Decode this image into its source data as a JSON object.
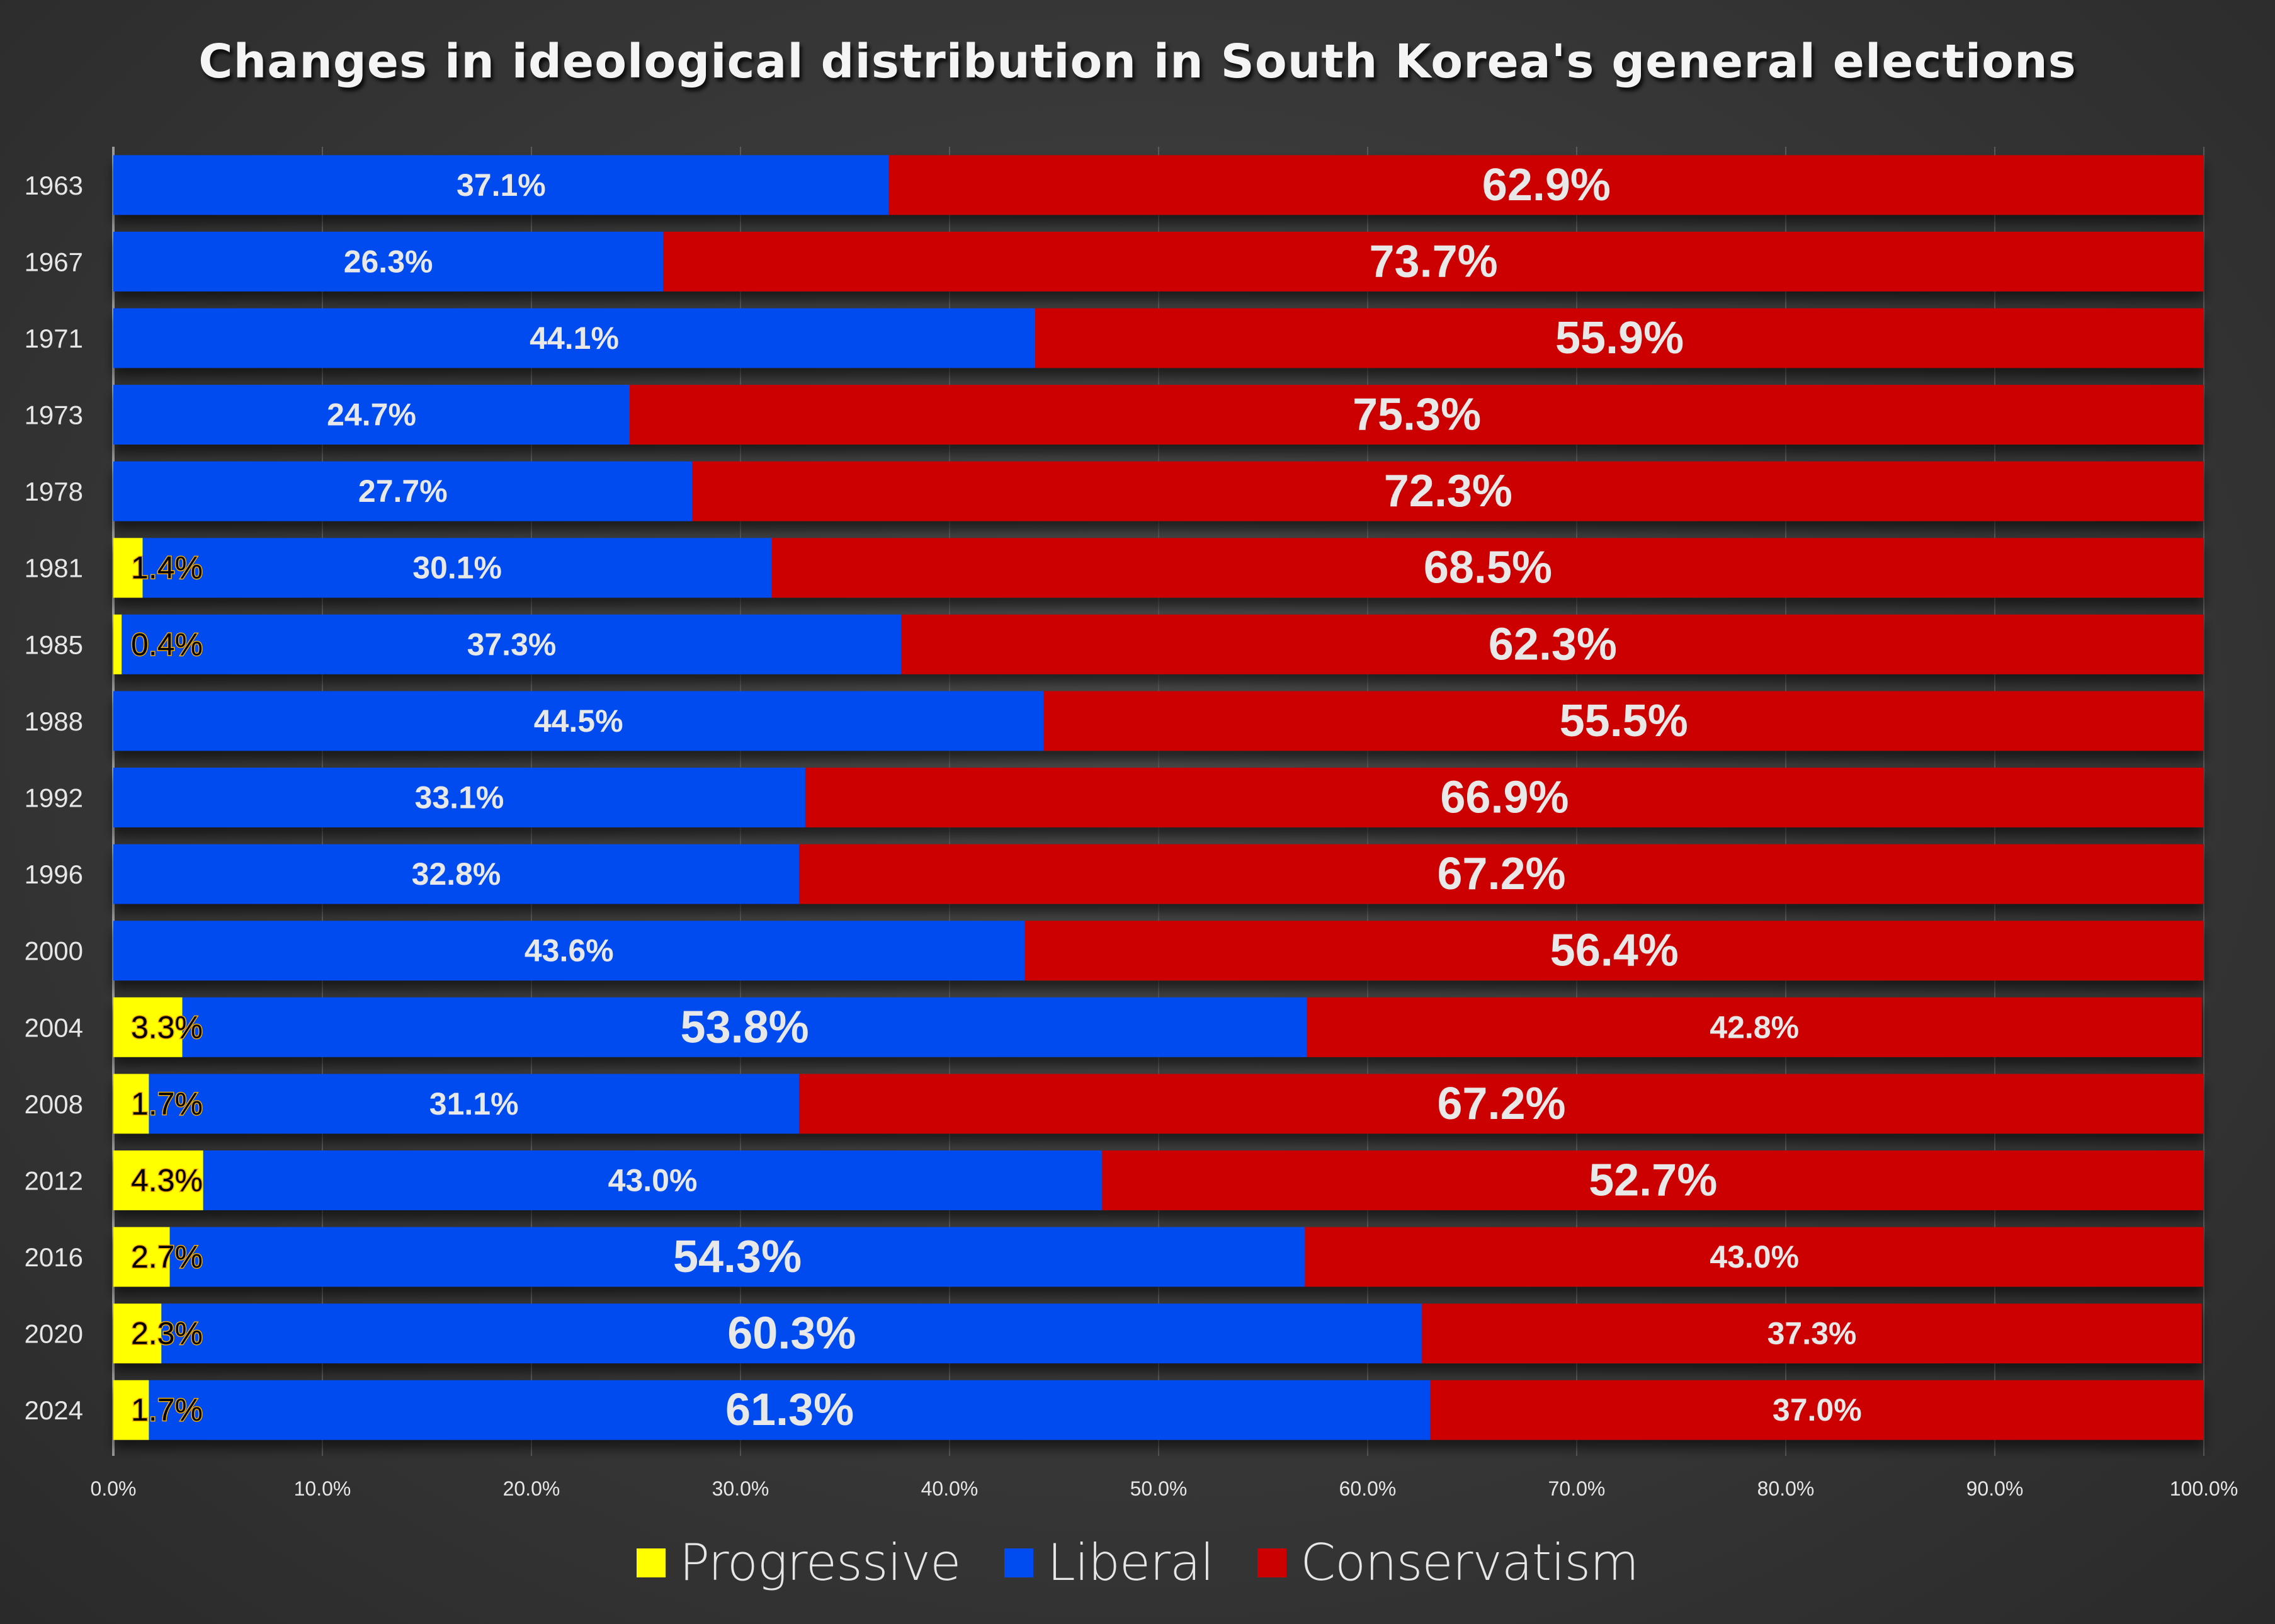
{
  "chart_data": {
    "type": "bar",
    "orientation": "horizontal",
    "stacked": true,
    "title": "Changes in ideological distribution in South Korea's general elections",
    "xlabel": "",
    "ylabel": "",
    "xlim": [
      0,
      100
    ],
    "x_ticks": [
      "0.0%",
      "10.0%",
      "20.0%",
      "30.0%",
      "40.0%",
      "50.0%",
      "60.0%",
      "70.0%",
      "80.0%",
      "90.0%",
      "100.0%"
    ],
    "grid": "vertical",
    "legend_position": "bottom-center",
    "categories": [
      "1963",
      "1967",
      "1971",
      "1973",
      "1978",
      "1981",
      "1985",
      "1988",
      "1992",
      "1996",
      "2000",
      "2004",
      "2008",
      "2012",
      "2016",
      "2020",
      "2024"
    ],
    "series": [
      {
        "name": "Progressive",
        "color": "#ffff00",
        "values": [
          0,
          0,
          0,
          0,
          0,
          1.4,
          0.4,
          0,
          0,
          0,
          0,
          3.3,
          1.7,
          4.3,
          2.7,
          2.3,
          1.7
        ]
      },
      {
        "name": "Liberal",
        "color": "#004cf0",
        "values": [
          37.1,
          26.3,
          44.1,
          24.7,
          27.7,
          30.1,
          37.3,
          44.5,
          33.1,
          32.8,
          43.6,
          53.8,
          31.1,
          43.0,
          54.3,
          60.3,
          61.3
        ]
      },
      {
        "name": "Conservatism",
        "color": "#cc0000",
        "values": [
          62.9,
          73.7,
          55.9,
          75.3,
          72.3,
          68.5,
          62.3,
          55.5,
          66.9,
          67.2,
          56.4,
          42.8,
          67.2,
          52.7,
          43.0,
          37.3,
          37.0
        ]
      }
    ],
    "data_labels": {
      "Progressive": [
        "",
        "",
        "",
        "",
        "",
        "1.4%",
        "0.4%",
        "",
        "",
        "",
        "",
        "3.3%",
        "1.7%",
        "4.3%",
        "2.7%",
        "2.3%",
        "1.7%"
      ],
      "Liberal": [
        "37.1%",
        "26.3%",
        "44.1%",
        "24.7%",
        "27.7%",
        "30.1%",
        "37.3%",
        "44.5%",
        "33.1%",
        "32.8%",
        "43.6%",
        "53.8%",
        "31.1%",
        "43.0%",
        "54.3%",
        "60.3%",
        "61.3%"
      ],
      "Conservatism": [
        "62.9%",
        "73.7%",
        "55.9%",
        "75.3%",
        "72.3%",
        "68.5%",
        "62.3%",
        "55.5%",
        "66.9%",
        "67.2%",
        "56.4%",
        "42.8%",
        "67.2%",
        "52.7%",
        "43.0%",
        "37.3%",
        "37.0%"
      ]
    },
    "emphasized_winner_labels": true
  },
  "legend": [
    {
      "label": "Progressive",
      "color": "#ffff00"
    },
    {
      "label": "Liberal",
      "color": "#004cf0"
    },
    {
      "label": "Conservatism",
      "color": "#cc0000"
    }
  ]
}
